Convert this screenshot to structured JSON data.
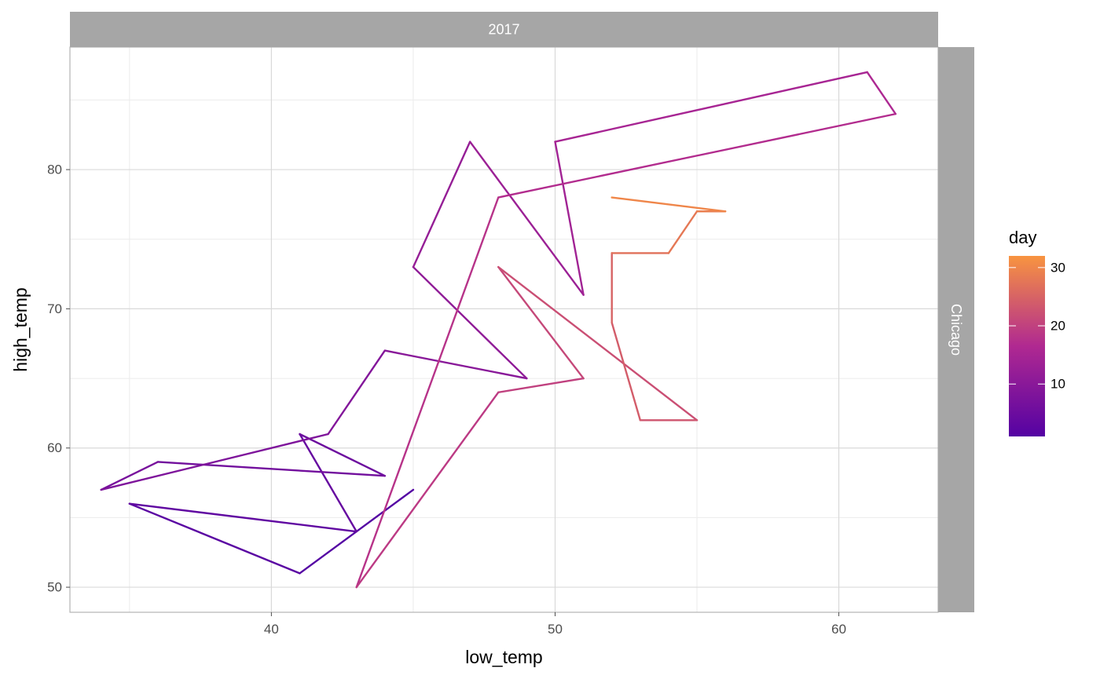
{
  "colors": {
    "strip": "#a6a6a6",
    "grid": "#d9d9d9",
    "panel_border": "#b3b3b3",
    "low": "#5402a3",
    "mid": "#b02991",
    "high": "#f89440"
  },
  "chart_data": {
    "type": "line",
    "facet_col": "2017",
    "facet_row": "Chicago",
    "xlabel": "low_temp",
    "ylabel": "high_temp",
    "xlim": [
      32.9,
      63.5
    ],
    "ylim": [
      48.2,
      88.8
    ],
    "xticks": [
      40,
      50,
      60
    ],
    "yticks": [
      50,
      60,
      70,
      80
    ],
    "grid": true,
    "legend": {
      "title": "day",
      "position": "right",
      "ticks": [
        10,
        20,
        30
      ],
      "range": [
        1,
        32
      ]
    },
    "series": [
      {
        "day": [
          1,
          2,
          3,
          4,
          5,
          6,
          7,
          8,
          9,
          10,
          11,
          12,
          13,
          14,
          15,
          16,
          17,
          18,
          19,
          20,
          21,
          22,
          23,
          24,
          25,
          26,
          27,
          28,
          29,
          30,
          31,
          32
        ],
        "x": [
          45,
          41,
          35,
          43,
          41,
          44,
          36,
          34,
          42,
          44,
          49,
          45,
          47,
          51,
          50,
          61,
          62,
          48,
          43,
          48,
          51,
          48,
          55,
          53,
          52,
          52,
          52,
          54,
          55,
          56,
          52,
          52
        ],
        "y": [
          57,
          51,
          56,
          54,
          61,
          58,
          59,
          57,
          61,
          67,
          65,
          73,
          82,
          71,
          82,
          87,
          84,
          78,
          50,
          64,
          65,
          73,
          62,
          62,
          69,
          74,
          74,
          74,
          77,
          77,
          78,
          78
        ]
      }
    ]
  }
}
